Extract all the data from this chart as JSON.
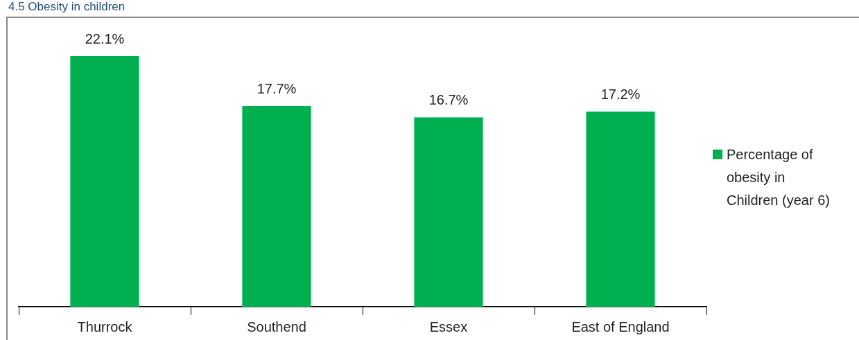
{
  "chart_data": {
    "type": "bar",
    "title": "4.5 Obesity in children",
    "categories": [
      "Thurrock",
      "Southend",
      "Essex",
      "East of England"
    ],
    "series": [
      {
        "name": "Percentage of obesity in Children (year 6)",
        "color": "#00b050",
        "values": [
          22.1,
          17.7,
          16.7,
          17.2
        ],
        "value_labels": [
          "22.1%",
          "17.7%",
          "16.7%",
          "17.2%"
        ]
      }
    ],
    "legend": "right",
    "grid": false
  }
}
